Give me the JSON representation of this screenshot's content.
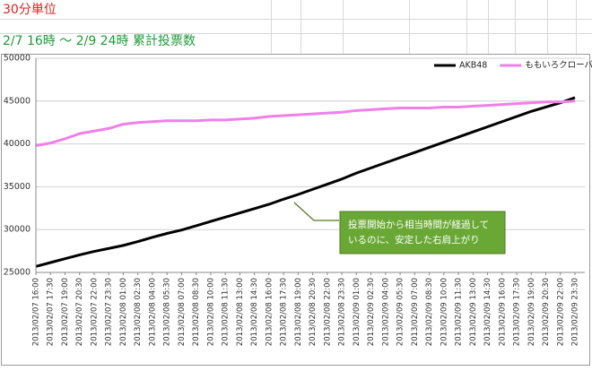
{
  "header": {
    "unit": "30分単位",
    "title": "2/7 16時 ～ 2/9 24時 累計投票数"
  },
  "chart_data": {
    "type": "line",
    "categories": [
      "2013/02/07 16:00",
      "2013/02/07 17:30",
      "2013/02/07 19:00",
      "2013/02/07 20:30",
      "2013/02/07 22:00",
      "2013/02/07 23:30",
      "2013/02/08 01:00",
      "2013/02/08 02:30",
      "2013/02/08 04:00",
      "2013/02/08 05:30",
      "2013/02/08 07:00",
      "2013/02/08 08:30",
      "2013/02/08 10:00",
      "2013/02/08 11:30",
      "2013/02/08 13:00",
      "2013/02/08 14:30",
      "2013/02/08 16:00",
      "2013/02/08 17:30",
      "2013/02/08 19:00",
      "2013/02/08 20:30",
      "2013/02/08 22:00",
      "2013/02/08 23:30",
      "2013/02/09 01:00",
      "2013/02/09 02:30",
      "2013/02/09 04:00",
      "2013/02/09 05:30",
      "2013/02/09 07:00",
      "2013/02/09 08:30",
      "2013/02/09 10:00",
      "2013/02/09 11:30",
      "2013/02/09 13:00",
      "2013/02/09 14:30",
      "2013/02/09 16:00",
      "2013/02/09 17:30",
      "2013/02/09 19:00",
      "2013/02/09 20:30",
      "2013/02/09 22:00",
      "2013/02/09 23:30"
    ],
    "series": [
      {
        "name": "AKB48",
        "color": "#000000",
        "values": [
          25700,
          26150,
          26600,
          27050,
          27450,
          27800,
          28150,
          28600,
          29100,
          29550,
          29950,
          30450,
          30950,
          31450,
          31950,
          32450,
          32950,
          33550,
          34100,
          34700,
          35300,
          35900,
          36600,
          37200,
          37800,
          38400,
          39000,
          39600,
          40200,
          40800,
          41400,
          42000,
          42600,
          43200,
          43800,
          44300,
          44800,
          45400
        ]
      },
      {
        "name": "ももいろクローバーZ",
        "color": "#f080e8",
        "values": [
          39800,
          40100,
          40600,
          41200,
          41500,
          41800,
          42300,
          42500,
          42600,
          42700,
          42700,
          42700,
          42800,
          42800,
          42900,
          43000,
          43200,
          43300,
          43400,
          43500,
          43600,
          43700,
          43900,
          44000,
          44100,
          44200,
          44200,
          44200,
          44300,
          44300,
          44400,
          44500,
          44600,
          44700,
          44800,
          44900,
          44900,
          45000
        ]
      }
    ],
    "ylim": [
      25000,
      50000
    ],
    "yticks": [
      25000,
      30000,
      35000,
      40000,
      45000,
      50000
    ],
    "grid": true,
    "legend": "top-right",
    "annotation": [
      "投票開始から相当時間が経過して",
      "いるのに、安定した右肩上がり"
    ]
  }
}
